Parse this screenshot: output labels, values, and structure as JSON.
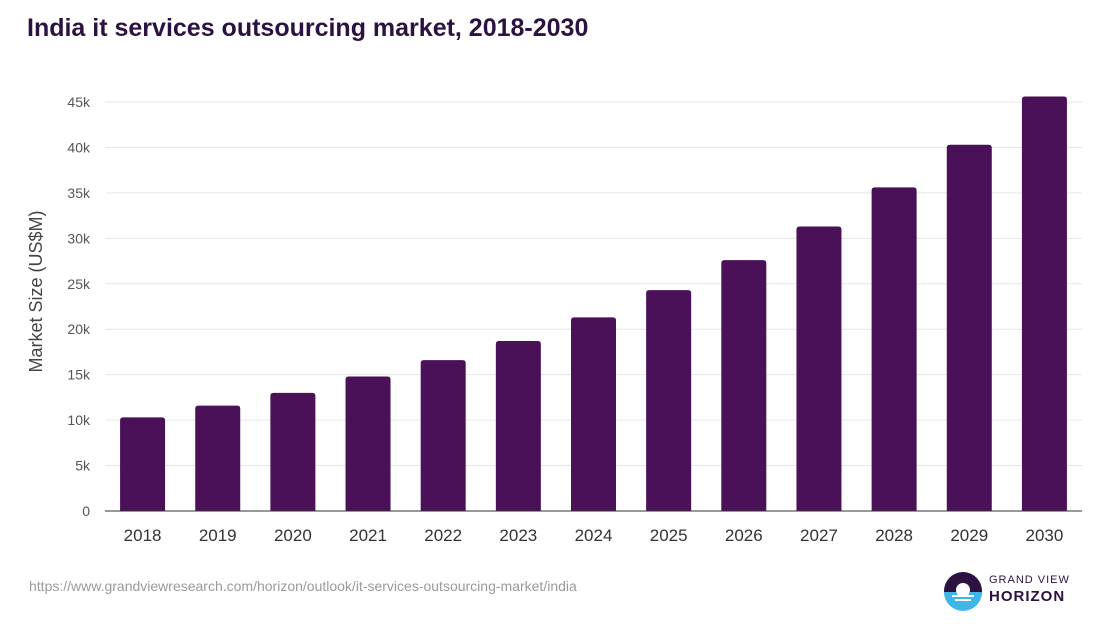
{
  "chart_data": {
    "type": "bar",
    "title": "India it services outsourcing market, 2018-2030",
    "xlabel": "",
    "ylabel": "Market Size (US$M)",
    "categories": [
      "2018",
      "2019",
      "2020",
      "2021",
      "2022",
      "2023",
      "2024",
      "2025",
      "2026",
      "2027",
      "2028",
      "2029",
      "2030"
    ],
    "series": [
      {
        "values": [
          10300,
          11600,
          13000,
          14800,
          16600,
          18700,
          21300,
          24300,
          27600,
          31300,
          35600,
          40300,
          45600
        ]
      }
    ],
    "ylim": [
      0,
      45000
    ],
    "yticks": [
      0,
      5000,
      10000,
      15000,
      20000,
      25000,
      30000,
      35000,
      40000,
      45000
    ],
    "ytick_labels": [
      "0",
      "5k",
      "10k",
      "15k",
      "20k",
      "25k",
      "30k",
      "35k",
      "40k",
      "45k"
    ],
    "grid": true,
    "legend": "none",
    "bar_color": "#4a1058"
  },
  "footer": {
    "source_url": "https://www.grandviewresearch.com/horizon/outlook/it-services-outsourcing-market/india"
  },
  "logo": {
    "line1": "GRAND VIEW",
    "line2": "HORIZON"
  }
}
